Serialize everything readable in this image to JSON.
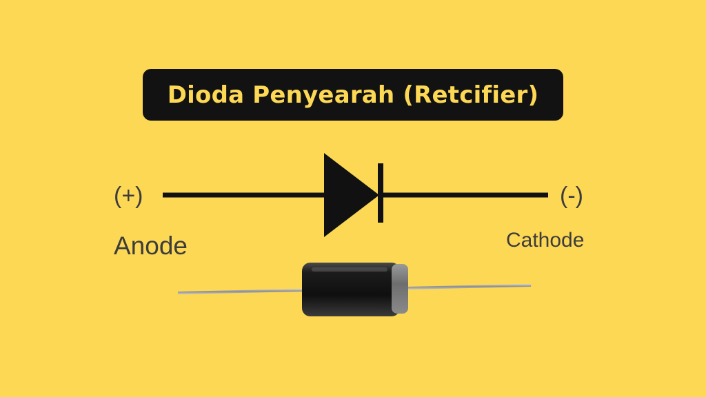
{
  "title": "Dioda Penyearah (Retcifier)",
  "symbol": {
    "anode_polarity": "(+)",
    "cathode_polarity": "(-)",
    "anode_label": "Anode",
    "cathode_label": "Cathode"
  },
  "colors": {
    "background": "#fdd854",
    "title_box": "#121212",
    "title_text": "#fdd854",
    "symbol": "#111111",
    "label_text": "#3c3c3c"
  }
}
